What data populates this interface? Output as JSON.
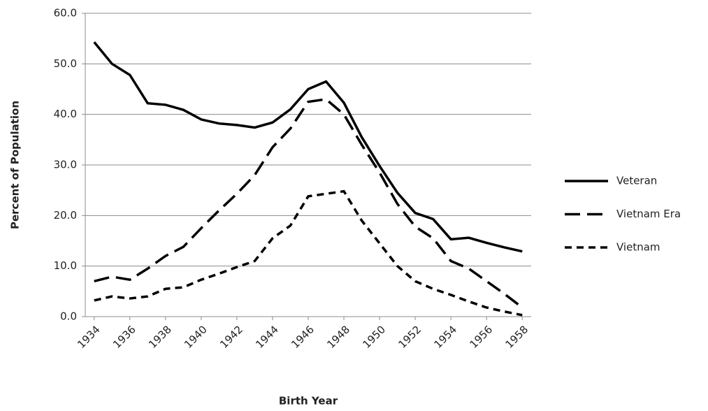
{
  "chart_data": {
    "type": "line",
    "x_label": "Birth Year",
    "y_label": "Percent of Population",
    "x": [
      1934,
      1935,
      1936,
      1937,
      1938,
      1939,
      1940,
      1941,
      1942,
      1943,
      1944,
      1945,
      1946,
      1947,
      1948,
      1949,
      1950,
      1951,
      1952,
      1953,
      1954,
      1955,
      1956,
      1957,
      1958
    ],
    "series": [
      {
        "name": "Veteran",
        "color": "#000000",
        "dash": "solid",
        "values": [
          54.3,
          50.0,
          47.8,
          42.2,
          41.9,
          40.9,
          39.0,
          38.2,
          37.9,
          37.4,
          38.4,
          41.0,
          45.0,
          46.5,
          42.3,
          35.5,
          29.8,
          24.5,
          20.5,
          19.3,
          15.3,
          15.6,
          14.6,
          13.7,
          12.9
        ]
      },
      {
        "name": "Vietnam Era",
        "color": "#000000",
        "dash": "long",
        "values": [
          7.0,
          7.9,
          7.3,
          9.5,
          12.0,
          13.8,
          17.5,
          21.0,
          24.3,
          28.0,
          33.5,
          37.2,
          42.5,
          43.0,
          40.0,
          34.0,
          28.5,
          22.3,
          17.8,
          15.5,
          11.0,
          9.5,
          7.0,
          4.5,
          1.8
        ]
      },
      {
        "name": "Vietnam",
        "color": "#000000",
        "dash": "short",
        "values": [
          3.2,
          4.0,
          3.6,
          4.0,
          5.5,
          5.8,
          7.3,
          8.5,
          9.8,
          11.0,
          15.5,
          18.0,
          23.8,
          24.3,
          24.8,
          19.0,
          14.5,
          10.0,
          7.0,
          5.5,
          4.3,
          3.0,
          1.8,
          1.0,
          0.3
        ]
      }
    ],
    "xlim": [
      1933.5,
      1958.5
    ],
    "xticks": [
      1934,
      1936,
      1938,
      1940,
      1942,
      1944,
      1946,
      1948,
      1950,
      1952,
      1954,
      1956,
      1958
    ],
    "ylim": [
      0,
      60
    ],
    "yticks": [
      {
        "value": 0,
        "label": "0.0"
      },
      {
        "value": 10,
        "label": "10.0"
      },
      {
        "value": 20,
        "label": "20.0"
      },
      {
        "value": 30,
        "label": "30.0"
      },
      {
        "value": 40,
        "label": "40.0"
      },
      {
        "value": 50,
        "label": "50.0"
      },
      {
        "value": 60,
        "label": "60.0"
      }
    ],
    "grid": true,
    "legend": "right"
  }
}
